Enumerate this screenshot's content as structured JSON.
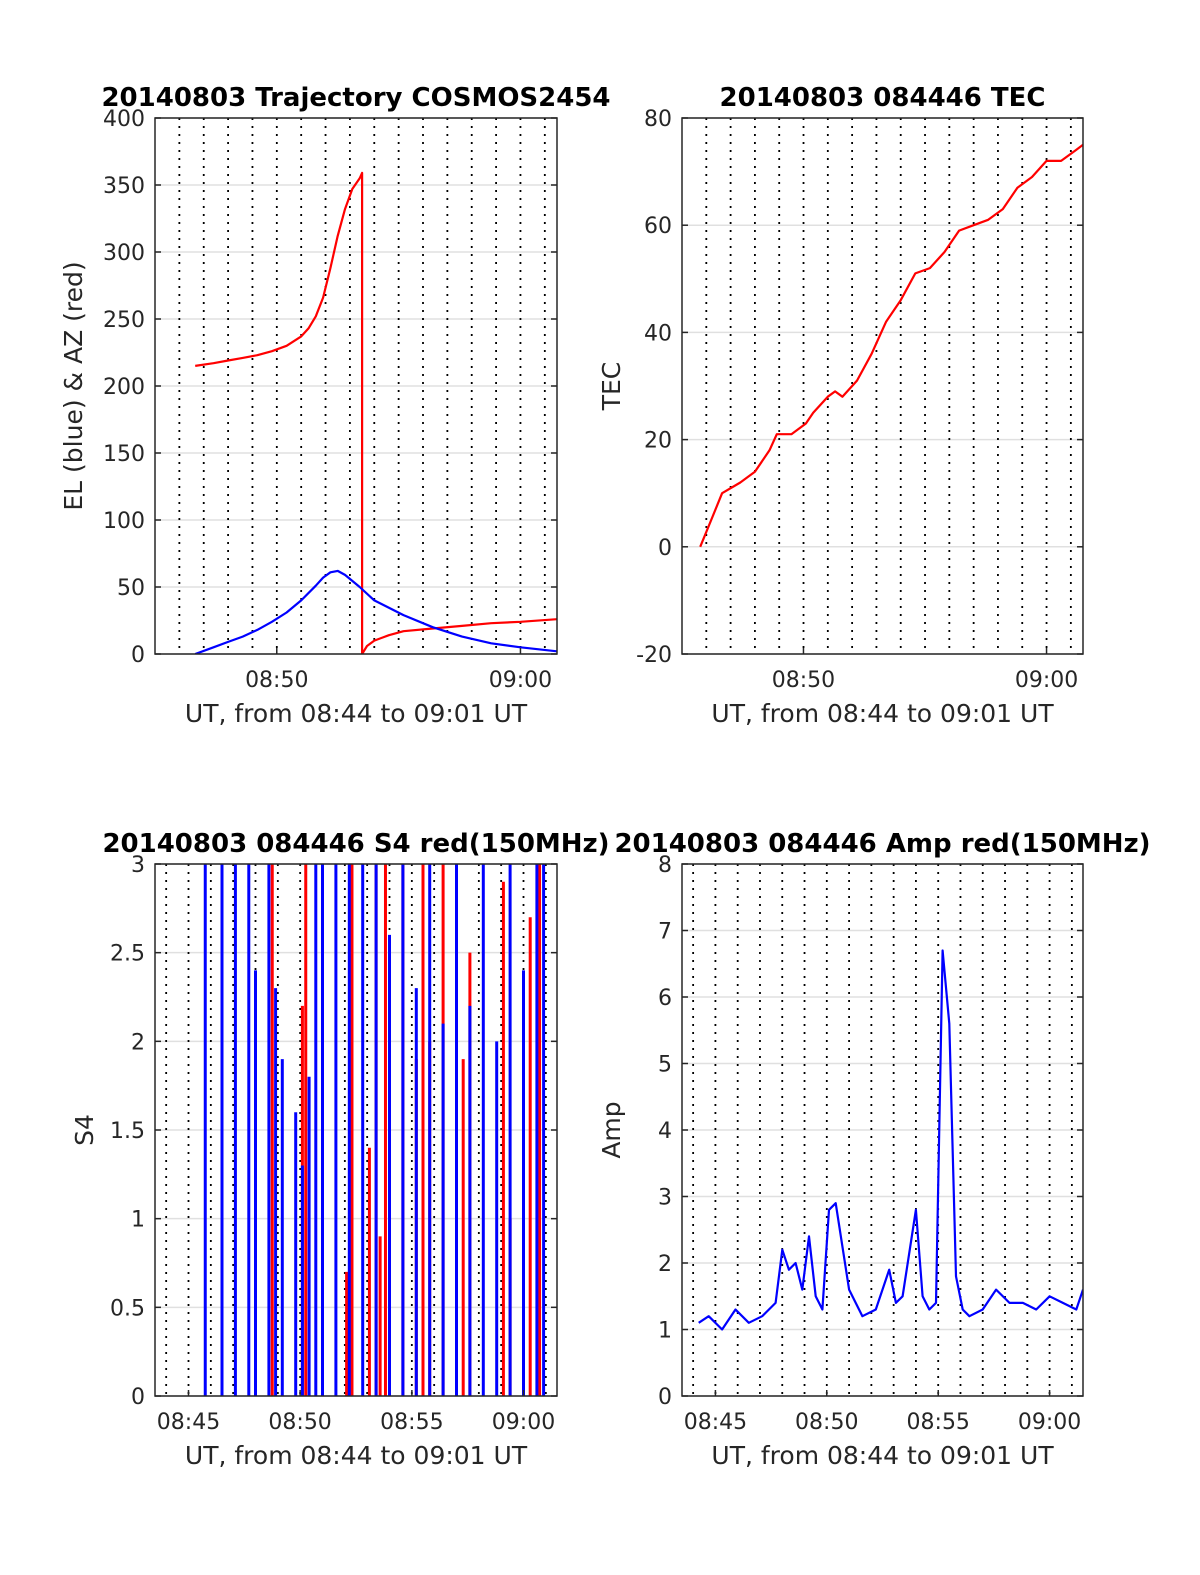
{
  "chart_data": [
    {
      "type": "line",
      "title": "20140803 Trajectory COSMOS2454",
      "xlabel": "UT, from 08:44 to 09:01 UT",
      "ylabel": "EL (blue) & AZ (red)",
      "xlim": [
        8.75,
        9.025
      ],
      "ylim": [
        0,
        400
      ],
      "yticks": [
        0,
        50,
        100,
        150,
        200,
        250,
        300,
        350,
        400
      ],
      "xticks": [
        {
          "v": 8.8333,
          "label": "08:50"
        },
        {
          "v": 9.0,
          "label": "09:00"
        }
      ],
      "grid": true,
      "series": [
        {
          "color": "#ff0000",
          "x": [
            8.7775,
            8.79,
            8.8,
            8.81,
            8.82,
            8.83,
            8.84,
            8.85,
            8.855,
            8.86,
            8.865,
            8.87,
            8.875,
            8.88,
            8.885,
            8.89,
            8.8917,
            8.8917,
            8.895,
            8.9,
            8.91,
            8.92,
            8.94,
            8.96,
            8.98,
            9.0,
            9.025
          ],
          "y": [
            215,
            217,
            219,
            221,
            223,
            226,
            230,
            237,
            243,
            252,
            266,
            288,
            312,
            332,
            347,
            355,
            359,
            0,
            6,
            10,
            14,
            17,
            19,
            21,
            23,
            24,
            26
          ]
        },
        {
          "color": "#0000ff",
          "x": [
            8.7775,
            8.79,
            8.8,
            8.81,
            8.82,
            8.83,
            8.84,
            8.85,
            8.86,
            8.865,
            8.87,
            8.875,
            8.88,
            8.89,
            8.9,
            8.92,
            8.94,
            8.96,
            8.98,
            9.0,
            9.025
          ],
          "y": [
            0,
            5,
            9,
            13,
            18,
            24,
            31,
            40,
            51,
            57,
            61,
            62,
            59,
            50,
            40,
            29,
            20,
            13,
            8,
            5,
            2
          ]
        }
      ]
    },
    {
      "type": "line",
      "title": "20140803 084446 TEC",
      "xlabel": "UT, from 08:44 to 09:01 UT",
      "ylabel": "TEC",
      "xlim": [
        8.75,
        9.025
      ],
      "ylim": [
        -20,
        80
      ],
      "yticks": [
        -20,
        0,
        20,
        40,
        60,
        80
      ],
      "xticks": [
        {
          "v": 8.8333,
          "label": "08:50"
        },
        {
          "v": 9.0,
          "label": "09:00"
        }
      ],
      "grid": true,
      "series": [
        {
          "color": "#ff0000",
          "x": [
            8.7625,
            8.77,
            8.7775,
            8.79,
            8.8,
            8.81,
            8.815,
            8.825,
            8.835,
            8.84,
            8.85,
            8.855,
            8.86,
            8.87,
            8.88,
            8.89,
            8.9,
            8.91,
            8.92,
            8.93,
            8.94,
            8.95,
            8.96,
            8.97,
            8.98,
            8.99,
            9.0,
            9.01,
            9.02,
            9.025
          ],
          "y": [
            0,
            5,
            10,
            12,
            14,
            18,
            21,
            21,
            23,
            25,
            28,
            29,
            28,
            31,
            36,
            42,
            46,
            51,
            52,
            55,
            59,
            60,
            61,
            63,
            67,
            69,
            72,
            72,
            74,
            75
          ]
        }
      ]
    },
    {
      "type": "bar",
      "title": "20140803 084446 S4 red(150MHz)",
      "xlabel": "UT, from 08:44 to 09:01 UT",
      "ylabel": "S4",
      "xlim": [
        8.725,
        9.025
      ],
      "ylim": [
        0,
        3
      ],
      "yticks": [
        0,
        0.5,
        1,
        1.5,
        2,
        2.5,
        3
      ],
      "xticks": [
        {
          "v": 8.75,
          "label": "08:45"
        },
        {
          "v": 8.8333,
          "label": "08:50"
        },
        {
          "v": 8.9167,
          "label": "08:55"
        },
        {
          "v": 9.0,
          "label": "09:00"
        }
      ],
      "grid": true,
      "series": [
        {
          "color": "#ff0000",
          "x": [
            8.8125,
            8.835,
            8.8375,
            8.868,
            8.872,
            8.885,
            8.89,
            8.893,
            8.897,
            8.9,
            8.91,
            8.92,
            8.925,
            8.93,
            8.94,
            8.95,
            8.955,
            8.96,
            8.985,
            8.99,
            9.005,
            9.012
          ],
          "y": [
            3.0,
            2.2,
            3.0,
            0.7,
            3.0,
            1.4,
            3.0,
            0.9,
            3.0,
            2.0,
            3.0,
            1.9,
            3.0,
            2.0,
            3.0,
            2.8,
            1.9,
            2.5,
            2.9,
            1.0,
            2.7,
            3.0
          ]
        },
        {
          "color": "#0000ff",
          "x": [
            8.7625,
            8.775,
            8.785,
            8.795,
            8.8,
            8.81,
            8.815,
            8.82,
            8.83,
            8.835,
            8.84,
            8.845,
            8.85,
            8.86,
            8.87,
            8.88,
            8.89,
            8.9,
            8.91,
            8.92,
            8.93,
            8.94,
            8.95,
            8.96,
            8.97,
            8.98,
            8.99,
            9.0,
            9.01,
            9.015
          ],
          "y": [
            3.0,
            3.0,
            3.0,
            3.0,
            2.4,
            3.0,
            2.3,
            1.9,
            1.6,
            1.3,
            1.8,
            3.0,
            3.0,
            3.0,
            3.0,
            3.0,
            3.0,
            2.6,
            3.0,
            2.3,
            3.0,
            2.1,
            3.0,
            2.2,
            3.0,
            2.0,
            3.0,
            2.4,
            3.0,
            3.0
          ]
        }
      ]
    },
    {
      "type": "line",
      "title": "20140803 084446 Amp red(150MHz)",
      "xlabel": "UT, from 08:44 to 09:01 UT",
      "ylabel": "Amp",
      "xlim": [
        8.725,
        9.025
      ],
      "ylim": [
        0,
        8
      ],
      "yticks": [
        0,
        1,
        2,
        3,
        4,
        5,
        6,
        7,
        8
      ],
      "xticks": [
        {
          "v": 8.75,
          "label": "08:45"
        },
        {
          "v": 8.8333,
          "label": "08:50"
        },
        {
          "v": 8.9167,
          "label": "08:55"
        },
        {
          "v": 9.0,
          "label": "09:00"
        }
      ],
      "grid": true,
      "series": [
        {
          "color": "#0000ff",
          "x": [
            8.7375,
            8.745,
            8.755,
            8.765,
            8.775,
            8.785,
            8.795,
            8.8,
            8.805,
            8.81,
            8.815,
            8.82,
            8.825,
            8.83,
            8.835,
            8.84,
            8.85,
            8.86,
            8.87,
            8.88,
            8.885,
            8.89,
            8.9,
            8.905,
            8.91,
            8.915,
            8.92,
            8.925,
            8.93,
            8.935,
            8.94,
            8.95,
            8.96,
            8.97,
            8.98,
            8.99,
            9.0,
            9.01,
            9.02,
            9.025
          ],
          "y": [
            1.1,
            1.2,
            1.0,
            1.3,
            1.1,
            1.2,
            1.4,
            2.2,
            1.9,
            2.0,
            1.6,
            2.4,
            1.5,
            1.3,
            2.8,
            2.9,
            1.6,
            1.2,
            1.3,
            1.9,
            1.4,
            1.5,
            2.8,
            1.5,
            1.3,
            1.4,
            6.7,
            5.6,
            1.8,
            1.3,
            1.2,
            1.3,
            1.6,
            1.4,
            1.4,
            1.3,
            1.5,
            1.4,
            1.3,
            1.6
          ]
        }
      ]
    }
  ]
}
